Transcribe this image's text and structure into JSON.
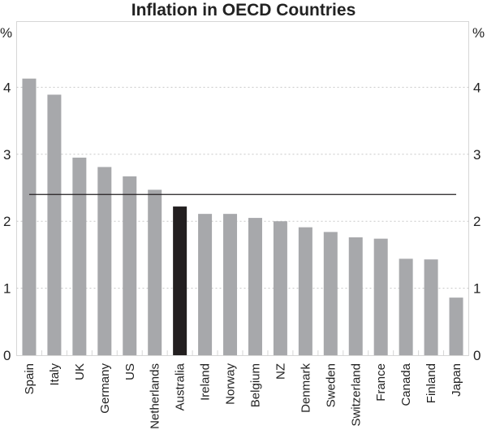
{
  "chart_data": {
    "type": "bar",
    "title": "Inflation in OECD Countries",
    "ylabel_left": "%",
    "ylabel_right": "%",
    "ylim": [
      0,
      4.35
    ],
    "yticks": [
      0,
      1,
      2,
      3,
      4
    ],
    "grid": true,
    "categories": [
      "Spain",
      "Italy",
      "UK",
      "Germany",
      "US",
      "Netherlands",
      "Australia",
      "Ireland",
      "Norway",
      "Belgium",
      "NZ",
      "Denmark",
      "Sweden",
      "Switzerland",
      "France",
      "Canada",
      "Finland",
      "Japan"
    ],
    "values": [
      4.13,
      3.89,
      2.95,
      2.81,
      2.67,
      2.47,
      2.22,
      2.11,
      2.11,
      2.05,
      2.0,
      1.91,
      1.84,
      1.76,
      1.74,
      1.44,
      1.43,
      0.86
    ],
    "highlight": "Australia",
    "reference_line": 2.4,
    "colors": {
      "bar": "#a7a8ab",
      "highlight": "#231f20",
      "line": "#231f20",
      "grid": "#c8c8c8"
    }
  }
}
